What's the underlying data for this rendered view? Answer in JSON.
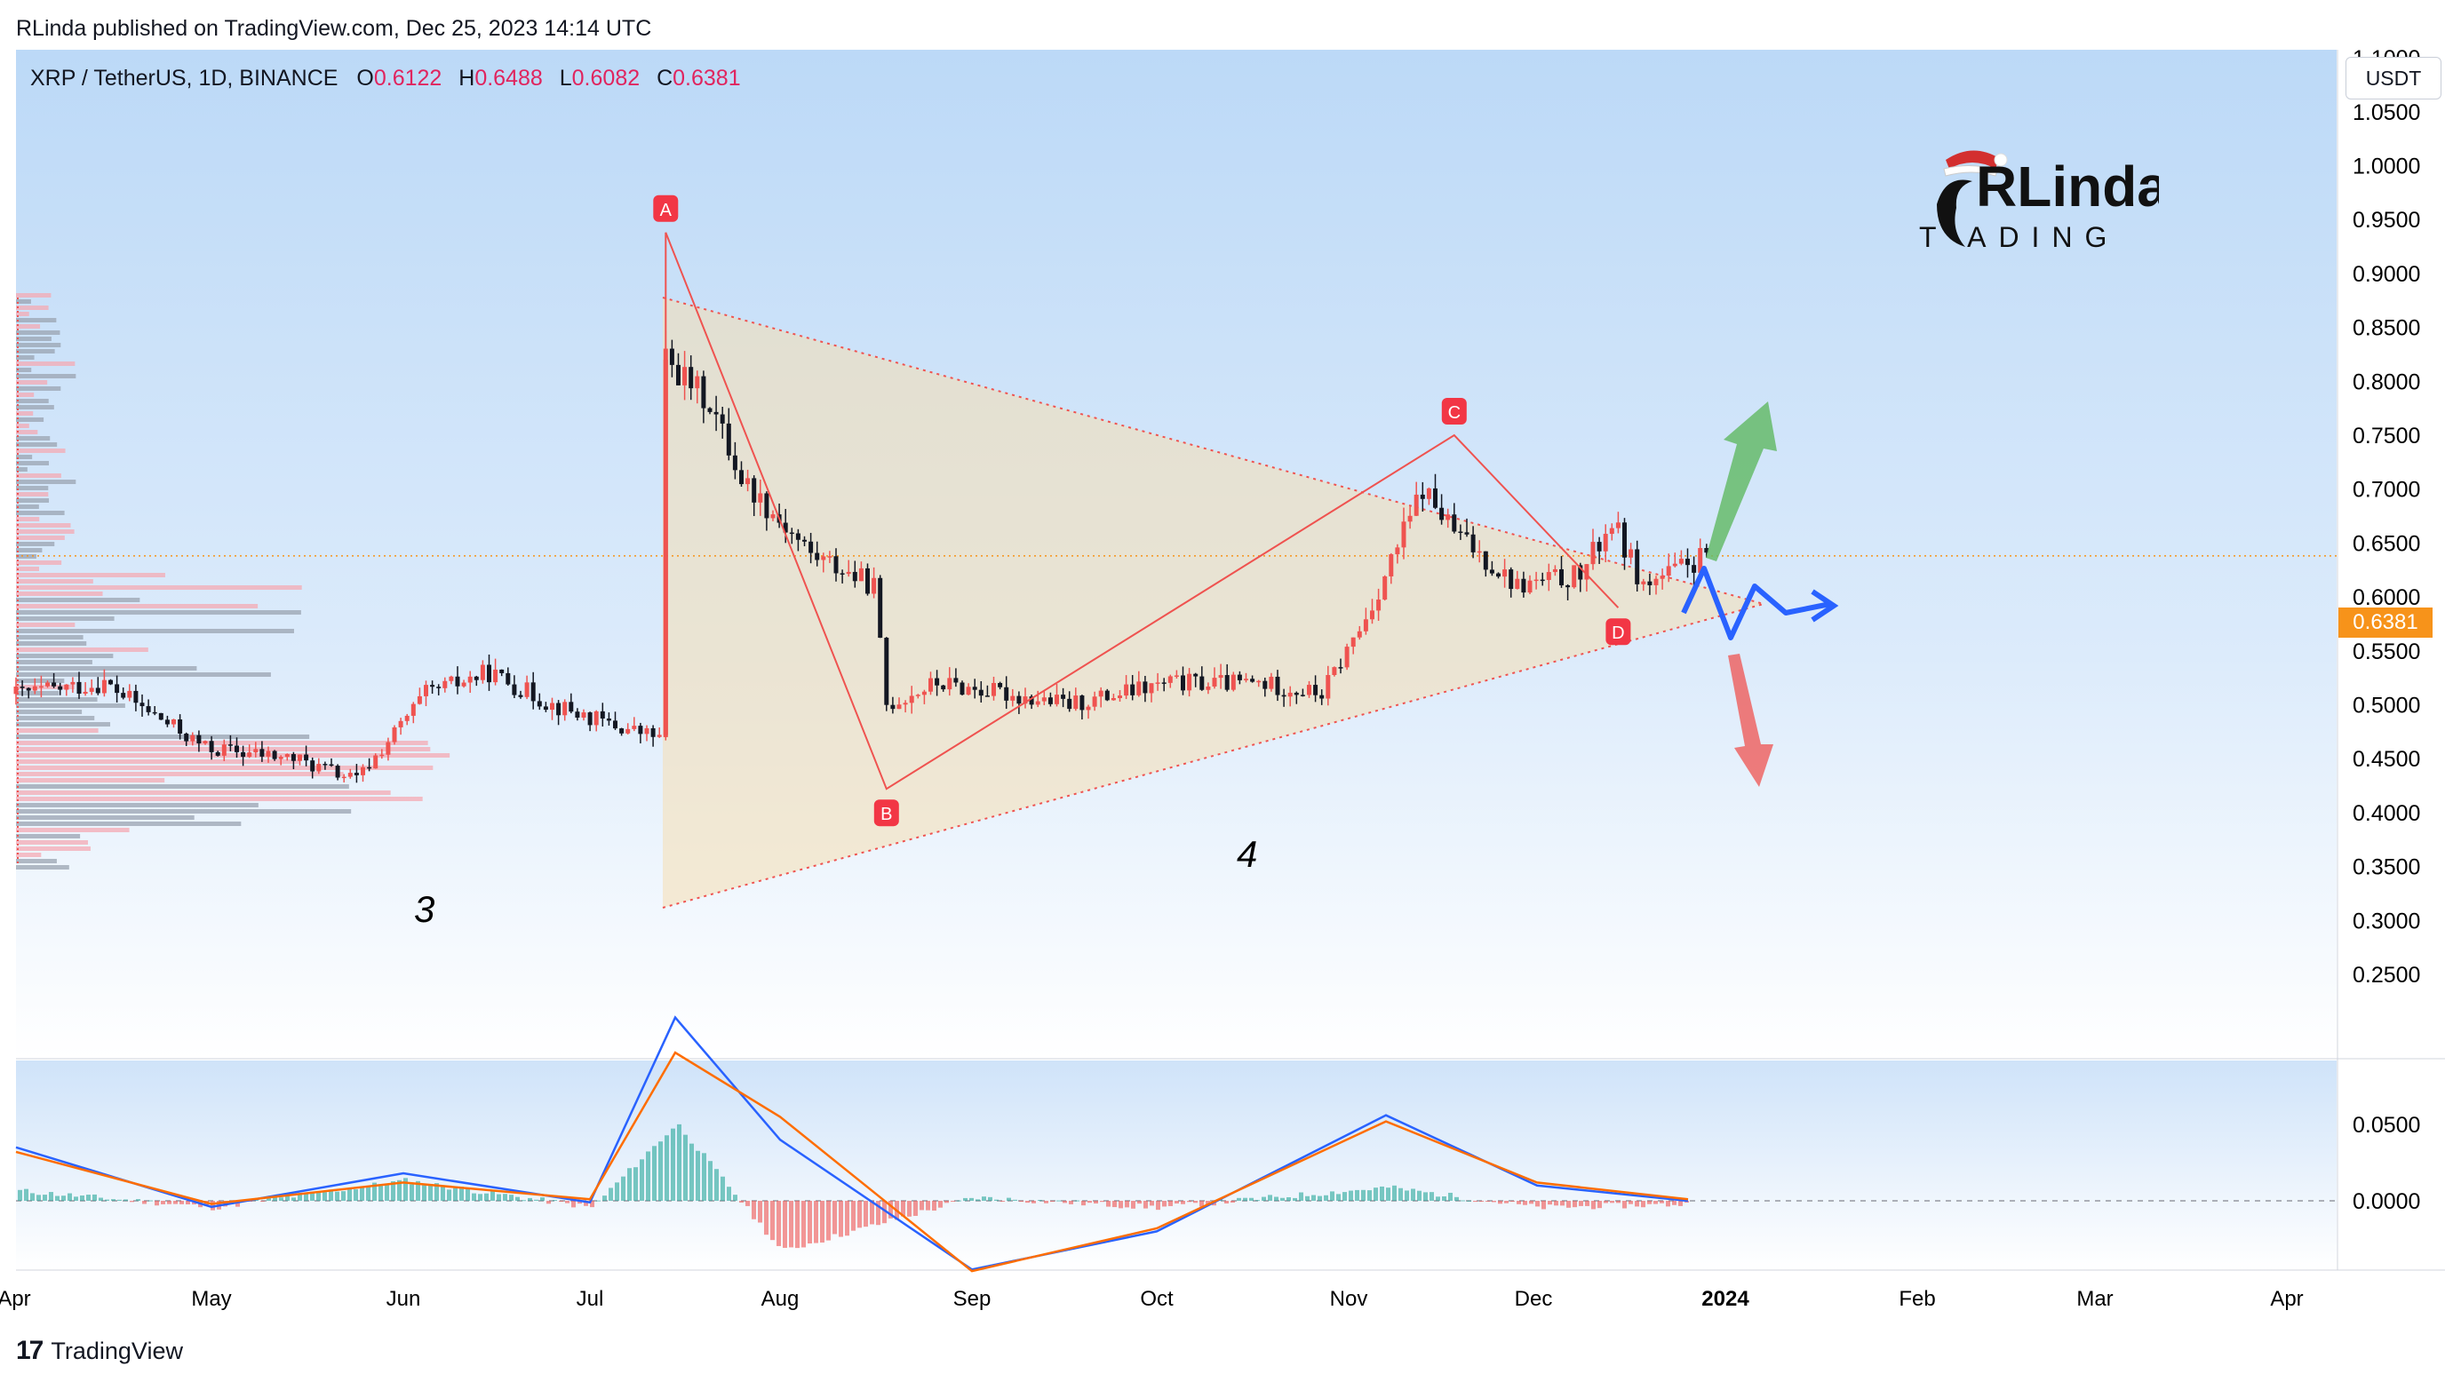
{
  "header": {
    "published": "RLinda published on TradingView.com, Dec 25, 2023 14:14 UTC"
  },
  "ohlc": {
    "symbol": "XRP / TetherUS, 1D, BINANCE",
    "o_label": "O",
    "o": "0.6122",
    "h_label": "H",
    "h": "0.6488",
    "l_label": "L",
    "l": "0.6082",
    "c_label": "C",
    "c": "0.6381"
  },
  "currency_button": "USDT",
  "last_price": "0.6381",
  "footer": {
    "brand": "TradingView"
  },
  "logo": {
    "line1": "RLinda",
    "line2": "T ADING"
  },
  "colors": {
    "up": "#ef5350",
    "down": "#131722",
    "triangle_fill": "#f5deb3",
    "blue_path": "#2962ff",
    "green_arrow": "#66bb6a",
    "red_arrow": "#ef5350",
    "macd": "#2962ff",
    "signal": "#ff6d00",
    "last_price_badge": "#f7931a"
  },
  "chart_data": [
    {
      "type": "line",
      "title": "",
      "ylim": [
        0.22,
        1.14
      ],
      "price_ticks": [
        "1.1000",
        "1.0500",
        "1.0000",
        "0.9500",
        "0.9000",
        "0.8500",
        "0.8000",
        "0.7500",
        "0.7000",
        "0.6500",
        "0.6000",
        "0.5500",
        "0.5000",
        "0.4500",
        "0.4000",
        "0.3500",
        "0.3000",
        "0.2500"
      ],
      "x_ticks": [
        "Apr",
        "May",
        "Jun",
        "Jul",
        "Aug",
        "Sep",
        "Oct",
        "Nov",
        "Dec",
        "2024",
        "Feb",
        "Mar",
        "Apr"
      ],
      "series": [
        {
          "x": [
            "2023-04-01",
            "2023-04-15",
            "2023-05-01",
            "2023-05-15",
            "2023-05-25",
            "2023-06-05",
            "2023-06-15",
            "2023-06-25",
            "2023-07-05",
            "2023-07-12",
            "2023-07-13",
            "2023-07-20",
            "2023-07-25",
            "2023-08-05",
            "2023-08-15",
            "2023-08-17",
            "2023-08-25",
            "2023-09-05",
            "2023-09-15",
            "2023-10-01",
            "2023-10-15",
            "2023-10-25",
            "2023-11-01",
            "2023-11-10",
            "2023-11-15",
            "2023-11-25",
            "2023-12-05",
            "2023-12-10",
            "2023-12-15",
            "2023-12-25"
          ],
          "values": [
            0.51,
            0.52,
            0.46,
            0.45,
            0.43,
            0.51,
            0.53,
            0.5,
            0.48,
            0.47,
            0.82,
            0.78,
            0.71,
            0.64,
            0.61,
            0.5,
            0.52,
            0.51,
            0.5,
            0.52,
            0.52,
            0.51,
            0.58,
            0.7,
            0.66,
            0.61,
            0.62,
            0.67,
            0.61,
            0.6381
          ]
        }
      ],
      "pattern_points": [
        {
          "label": "A",
          "date": "2023-07-13",
          "price": 0.938
        },
        {
          "label": "B",
          "date": "2023-08-17",
          "price": 0.422
        },
        {
          "label": "C",
          "date": "2023-11-15",
          "price": 0.75
        },
        {
          "label": "D",
          "date": "2023-12-11",
          "price": 0.59
        }
      ],
      "wave_labels": [
        "3",
        "4"
      ],
      "last_price": 0.6381
    },
    {
      "type": "line",
      "title": "",
      "ylim": [
        -0.06,
        0.13
      ],
      "price_ticks": [
        "0.0500",
        "0.0000"
      ],
      "series": [
        {
          "x": [
            "Apr",
            "May",
            "Jun",
            "Jul",
            "mid-Jul",
            "Aug",
            "Sep",
            "Oct",
            "Nov",
            "Dec",
            "2024"
          ],
          "values": [
            0.035,
            -0.004,
            0.018,
            -0.001,
            0.12,
            0.04,
            -0.045,
            -0.02,
            0.056,
            0.01,
            0.0
          ]
        },
        {
          "x": [
            "Apr",
            "May",
            "Jun",
            "Jul",
            "mid-Jul",
            "Aug",
            "Sep",
            "Oct",
            "Nov",
            "Dec",
            "2024"
          ],
          "values": [
            0.032,
            -0.002,
            0.012,
            0.001,
            0.097,
            0.055,
            -0.046,
            -0.018,
            0.052,
            0.012,
            0.001
          ]
        }
      ]
    }
  ]
}
